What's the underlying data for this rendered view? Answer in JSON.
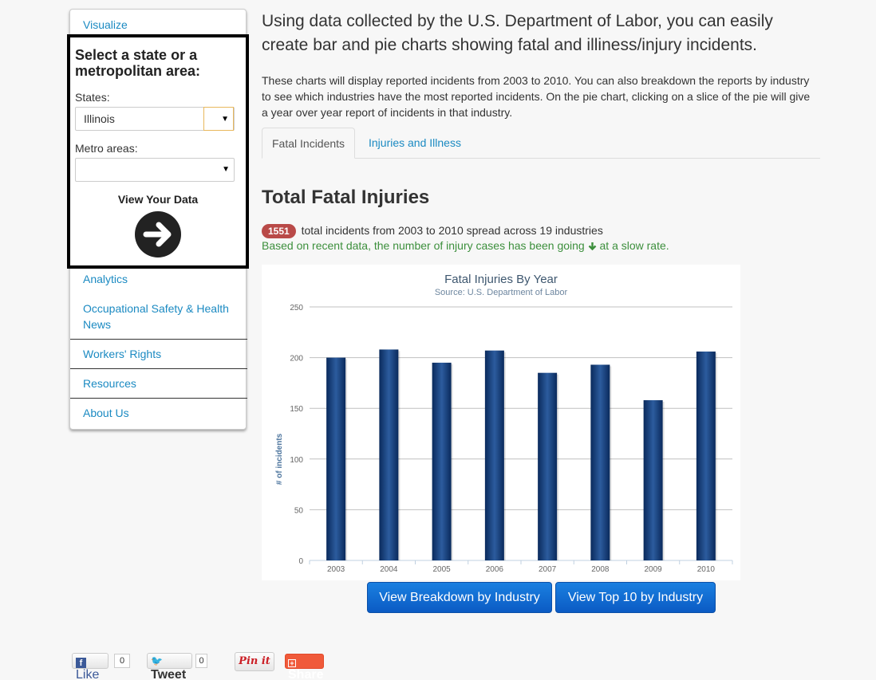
{
  "sidebar": {
    "visualize": "Visualize",
    "items": [
      {
        "label": "Analytics"
      },
      {
        "label": "Occupational Safety & Health News"
      },
      {
        "label": "Workers' Rights"
      },
      {
        "label": "Resources"
      },
      {
        "label": "About Us"
      }
    ]
  },
  "select_panel": {
    "title": "Select a state or a metropolitan area:",
    "states_label": "States:",
    "states_value": "Illinois",
    "metro_label": "Metro areas:",
    "metro_value": "",
    "view_label": "View Your Data"
  },
  "main": {
    "intro": "Using data collected by the U.S. Department of Labor, you can easily create bar and pie charts showing fatal and illiness/injury incidents.",
    "description": "These charts will display reported incidents from 2003 to 2010. You can also breakdown the reports by industry to see which industries have the most reported incidents. On the pie chart, clicking on a slice of the pie will give a year over year report of incidents in that industry.",
    "tabs": [
      {
        "label": "Fatal Incidents",
        "active": true
      },
      {
        "label": "Injuries and Illness",
        "active": false
      }
    ],
    "section_title": "Total Fatal Injuries",
    "badge": "1551",
    "total_text": "total incidents from 2003 to 2010 spread across 19 industries",
    "trend_text_before": "Based on recent data, the number of injury cases has been going",
    "trend_text_after": "at a slow rate.",
    "buttons": {
      "breakdown": "View Breakdown by Industry",
      "top10": "View Top 10 by Industry"
    }
  },
  "chart_data": {
    "type": "bar",
    "title": "Fatal Injuries By Year",
    "subtitle": "Source: U.S. Department of Labor",
    "ylabel": "# of incidents",
    "xlabel": "",
    "categories": [
      "2003",
      "2004",
      "2005",
      "2006",
      "2007",
      "2008",
      "2009",
      "2010"
    ],
    "values": [
      200,
      208,
      195,
      207,
      185,
      193,
      158,
      206
    ],
    "ylim": [
      0,
      250
    ],
    "yticks": [
      0,
      50,
      100,
      150,
      200,
      250
    ],
    "grid": true,
    "legend": "none",
    "bar_color_top": "#2c5c9e",
    "bar_color_bottom": "#0a2a5c"
  },
  "social": {
    "like": "Like",
    "like_count": "0",
    "tweet": "Tweet",
    "tweet_count": "0",
    "pin": "Pin it",
    "share": "Share"
  },
  "colors": {
    "link": "#1b8ac2",
    "badge": "#b94a48",
    "trend": "#3c8f3c",
    "button": "#0b5bc4"
  }
}
